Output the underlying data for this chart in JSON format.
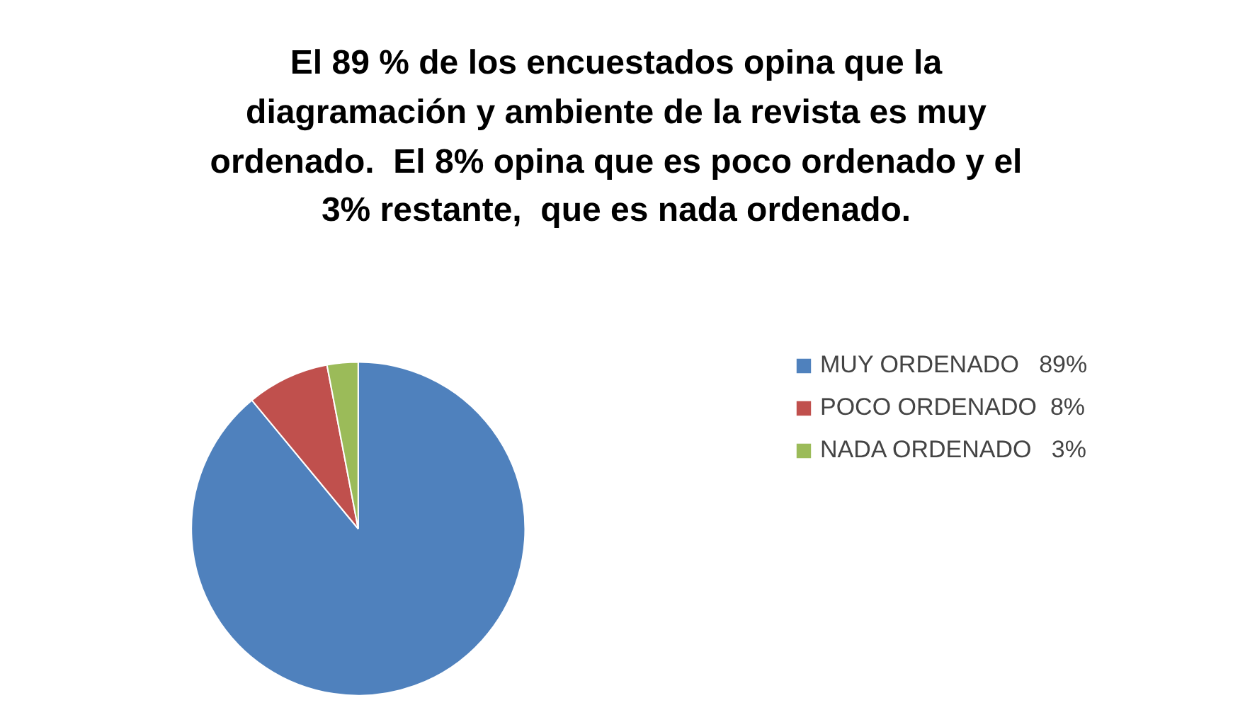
{
  "chart_data": {
    "type": "pie",
    "title": "El 89 % de los encuestados opina que la diagramación y ambiente de la revista es muy ordenado.  El 8% opina que es poco ordenado y el 3% restante,  que es nada ordenado.",
    "categories": [
      "MUY ORDENADO   89%",
      "POCO ORDENADO  8%",
      "NADA ORDENADO   3%"
    ],
    "values": [
      89,
      8,
      3
    ],
    "colors": [
      "#4f81bd",
      "#c0504d",
      "#9bbb59"
    ],
    "legend": "right"
  }
}
